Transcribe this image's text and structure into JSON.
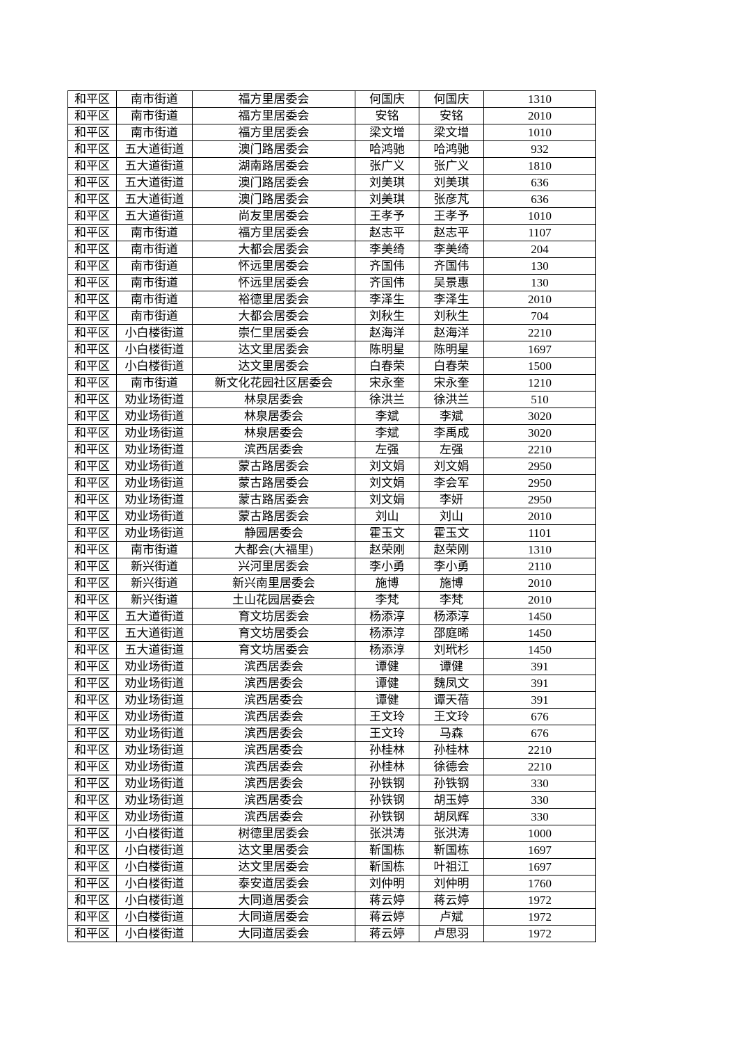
{
  "table": {
    "rows": [
      [
        "和平区",
        "南市街道",
        "福方里居委会",
        "何国庆",
        "何国庆",
        "1310"
      ],
      [
        "和平区",
        "南市街道",
        "福方里居委会",
        "安铭",
        "安铭",
        "2010"
      ],
      [
        "和平区",
        "南市街道",
        "福方里居委会",
        "梁文增",
        "梁文增",
        "1010"
      ],
      [
        "和平区",
        "五大道街道",
        "澳门路居委会",
        "哈鸿驰",
        "哈鸿驰",
        "932"
      ],
      [
        "和平区",
        "五大道街道",
        "湖南路居委会",
        "张广义",
        "张广义",
        "1810"
      ],
      [
        "和平区",
        "五大道街道",
        "澳门路居委会",
        "刘美琪",
        "刘美琪",
        "636"
      ],
      [
        "和平区",
        "五大道街道",
        "澳门路居委会",
        "刘美琪",
        "张彦芃",
        "636"
      ],
      [
        "和平区",
        "五大道街道",
        "尚友里居委会",
        "王孝予",
        "王孝予",
        "1010"
      ],
      [
        "和平区",
        "南市街道",
        "福方里居委会",
        "赵志平",
        "赵志平",
        "1107"
      ],
      [
        "和平区",
        "南市街道",
        "大都会居委会",
        "李美绮",
        "李美绮",
        "204"
      ],
      [
        "和平区",
        "南市街道",
        "怀远里居委会",
        "齐国伟",
        "齐国伟",
        "130"
      ],
      [
        "和平区",
        "南市街道",
        "怀远里居委会",
        "齐国伟",
        "吴景惠",
        "130"
      ],
      [
        "和平区",
        "南市街道",
        "裕德里居委会",
        "李泽生",
        "李泽生",
        "2010"
      ],
      [
        "和平区",
        "南市街道",
        "大都会居委会",
        "刘秋生",
        "刘秋生",
        "704"
      ],
      [
        "和平区",
        "小白楼街道",
        "崇仁里居委会",
        "赵海洋",
        "赵海洋",
        "2210"
      ],
      [
        "和平区",
        "小白楼街道",
        "达文里居委会",
        "陈明星",
        "陈明星",
        "1697"
      ],
      [
        "和平区",
        "小白楼街道",
        "达文里居委会",
        "白春荣",
        "白春荣",
        "1500"
      ],
      [
        "和平区",
        "南市街道",
        "新文化花园社区居委会",
        "宋永奎",
        "宋永奎",
        "1210"
      ],
      [
        "和平区",
        "劝业场街道",
        "林泉居委会",
        "徐洪兰",
        "徐洪兰",
        "510"
      ],
      [
        "和平区",
        "劝业场街道",
        "林泉居委会",
        "李斌",
        "李斌",
        "3020"
      ],
      [
        "和平区",
        "劝业场街道",
        "林泉居委会",
        "李斌",
        "李禹成",
        "3020"
      ],
      [
        "和平区",
        "劝业场街道",
        "滨西居委会",
        "左强",
        "左强",
        "2210"
      ],
      [
        "和平区",
        "劝业场街道",
        "蒙古路居委会",
        "刘文娟",
        "刘文娟",
        "2950"
      ],
      [
        "和平区",
        "劝业场街道",
        "蒙古路居委会",
        "刘文娟",
        "李会军",
        "2950"
      ],
      [
        "和平区",
        "劝业场街道",
        "蒙古路居委会",
        "刘文娟",
        "李妍",
        "2950"
      ],
      [
        "和平区",
        "劝业场街道",
        "蒙古路居委会",
        "刘山",
        "刘山",
        "2010"
      ],
      [
        "和平区",
        "劝业场街道",
        "静园居委会",
        "霍玉文",
        "霍玉文",
        "1101"
      ],
      [
        "和平区",
        "南市街道",
        "大都会(大福里)",
        "赵荣刚",
        "赵荣刚",
        "1310"
      ],
      [
        "和平区",
        "新兴街道",
        "兴河里居委会",
        "李小勇",
        "李小勇",
        "2110"
      ],
      [
        "和平区",
        "新兴街道",
        "新兴南里居委会",
        "施博",
        "施博",
        "2010"
      ],
      [
        "和平区",
        "新兴街道",
        "土山花园居委会",
        "李梵",
        "李梵",
        "2010"
      ],
      [
        "和平区",
        "五大道街道",
        "育文坊居委会",
        "杨添淳",
        "杨添淳",
        "1450"
      ],
      [
        "和平区",
        "五大道街道",
        "育文坊居委会",
        "杨添淳",
        "邵庭晞",
        "1450"
      ],
      [
        "和平区",
        "五大道街道",
        "育文坊居委会",
        "杨添淳",
        "刘玳杉",
        "1450"
      ],
      [
        "和平区",
        "劝业场街道",
        "滨西居委会",
        "谭健",
        "谭健",
        "391"
      ],
      [
        "和平区",
        "劝业场街道",
        "滨西居委会",
        "谭健",
        "魏凤文",
        "391"
      ],
      [
        "和平区",
        "劝业场街道",
        "滨西居委会",
        "谭健",
        "谭天蓓",
        "391"
      ],
      [
        "和平区",
        "劝业场街道",
        "滨西居委会",
        "王文玲",
        "王文玲",
        "676"
      ],
      [
        "和平区",
        "劝业场街道",
        "滨西居委会",
        "王文玲",
        "马森",
        "676"
      ],
      [
        "和平区",
        "劝业场街道",
        "滨西居委会",
        "孙桂林",
        "孙桂林",
        "2210"
      ],
      [
        "和平区",
        "劝业场街道",
        "滨西居委会",
        "孙桂林",
        "徐德会",
        "2210"
      ],
      [
        "和平区",
        "劝业场街道",
        "滨西居委会",
        "孙铁钢",
        "孙铁钢",
        "330"
      ],
      [
        "和平区",
        "劝业场街道",
        "滨西居委会",
        "孙铁钢",
        "胡玉婷",
        "330"
      ],
      [
        "和平区",
        "劝业场街道",
        "滨西居委会",
        "孙铁钢",
        "胡凤辉",
        "330"
      ],
      [
        "和平区",
        "小白楼街道",
        "树德里居委会",
        "张洪涛",
        "张洪涛",
        "1000"
      ],
      [
        "和平区",
        "小白楼街道",
        "达文里居委会",
        "靳国栋",
        "靳国栋",
        "1697"
      ],
      [
        "和平区",
        "小白楼街道",
        "达文里居委会",
        "靳国栋",
        "叶祖江",
        "1697"
      ],
      [
        "和平区",
        "小白楼街道",
        "泰安道居委会",
        "刘仲明",
        "刘仲明",
        "1760"
      ],
      [
        "和平区",
        "小白楼街道",
        "大同道居委会",
        "蒋云婷",
        "蒋云婷",
        "1972"
      ],
      [
        "和平区",
        "小白楼街道",
        "大同道居委会",
        "蒋云婷",
        "卢斌",
        "1972"
      ],
      [
        "和平区",
        "小白楼街道",
        "大同道居委会",
        "蒋云婷",
        "卢思羽",
        "1972"
      ]
    ]
  }
}
